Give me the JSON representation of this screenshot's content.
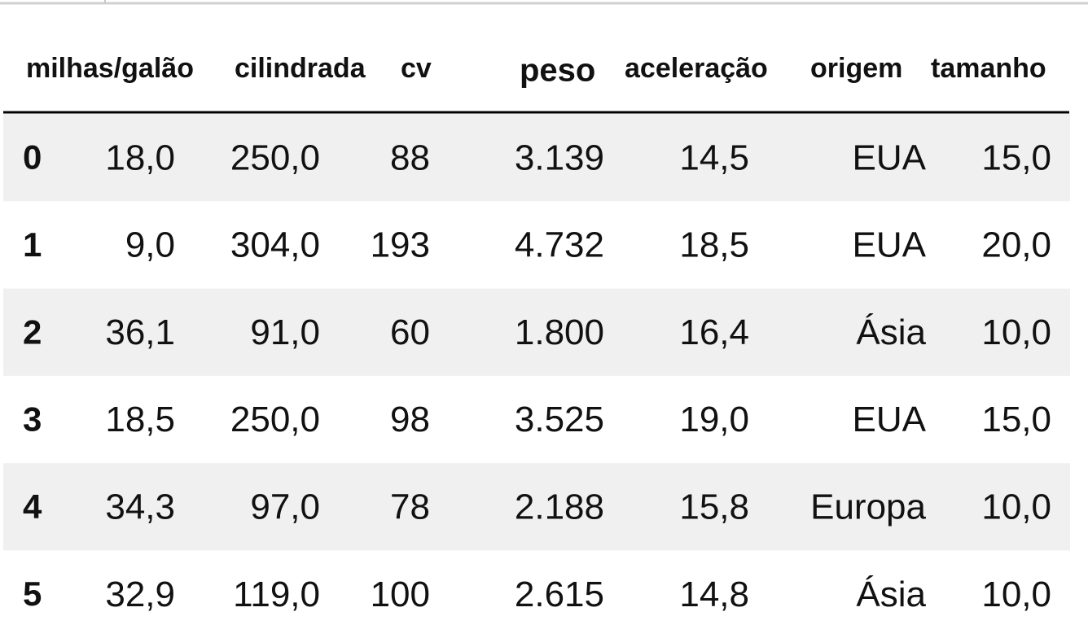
{
  "table": {
    "columns": [
      "milhas/galão",
      "cilindrada",
      "cv",
      "peso",
      "aceleração",
      "origem",
      "tamanho"
    ],
    "rows": [
      {
        "index": "0",
        "cells": [
          "18,0",
          "250,0",
          "88",
          "3.139",
          "14,5",
          "EUA",
          "15,0"
        ]
      },
      {
        "index": "1",
        "cells": [
          "9,0",
          "304,0",
          "193",
          "4.732",
          "18,5",
          "EUA",
          "20,0"
        ]
      },
      {
        "index": "2",
        "cells": [
          "36,1",
          "91,0",
          "60",
          "1.800",
          "16,4",
          "Ásia",
          "10,0"
        ]
      },
      {
        "index": "3",
        "cells": [
          "18,5",
          "250,0",
          "98",
          "3.525",
          "19,0",
          "EUA",
          "15,0"
        ]
      },
      {
        "index": "4",
        "cells": [
          "34,3",
          "97,0",
          "78",
          "2.188",
          "15,8",
          "Europa",
          "10,0"
        ]
      },
      {
        "index": "5",
        "cells": [
          "32,9",
          "119,0",
          "100",
          "2.615",
          "14,8",
          "Ásia",
          "10,0"
        ]
      }
    ]
  }
}
